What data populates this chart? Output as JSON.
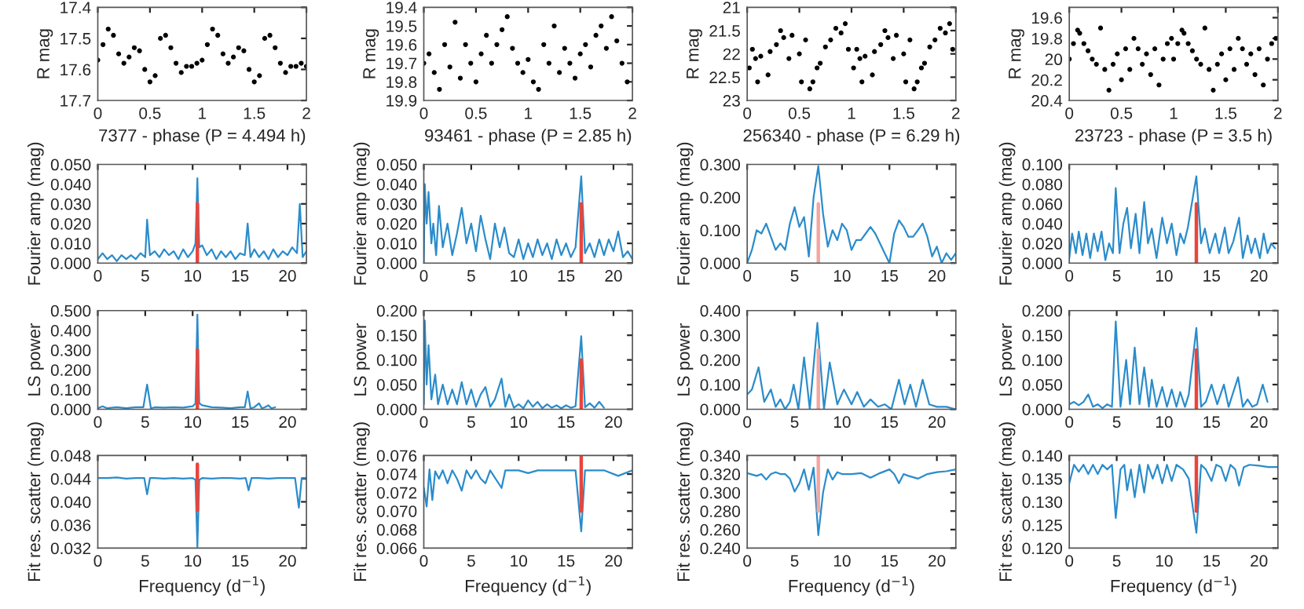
{
  "chart_data": [
    {
      "type": "scatter",
      "xlabel": "7377 - phase (P = 4.494 h)",
      "ylabel": "R mag",
      "marker": "circle",
      "xlim": [
        0,
        2
      ],
      "ylim": [
        17.7,
        17.4
      ],
      "xticks": [
        0,
        0.5,
        1,
        1.5,
        2
      ],
      "yticks": [
        17.4,
        17.5,
        17.6,
        17.7
      ],
      "series": [
        {
          "color": "#000000",
          "x": [
            0,
            0.05,
            0.1,
            0.15,
            0.2,
            0.25,
            0.3,
            0.35,
            0.4,
            0.45,
            0.5,
            0.55,
            0.6,
            0.65,
            0.7,
            0.75,
            0.8,
            0.85,
            0.9,
            0.95,
            1,
            1.05,
            1.1,
            1.15,
            1.2,
            1.25,
            1.3,
            1.35,
            1.4,
            1.45,
            1.5,
            1.55,
            1.6,
            1.65,
            1.7,
            1.75,
            1.8,
            1.85,
            1.9,
            1.95,
            2
          ],
          "values": [
            17.57,
            17.52,
            17.47,
            17.49,
            17.55,
            17.58,
            17.56,
            17.53,
            17.54,
            17.6,
            17.64,
            17.62,
            17.5,
            17.49,
            17.53,
            17.58,
            17.61,
            17.59,
            17.59,
            17.58,
            17.57,
            17.52,
            17.47,
            17.49,
            17.55,
            17.58,
            17.56,
            17.53,
            17.54,
            17.6,
            17.64,
            17.62,
            17.5,
            17.49,
            17.53,
            17.58,
            17.61,
            17.59,
            17.59,
            17.58,
            17.59
          ]
        }
      ]
    },
    {
      "type": "scatter",
      "xlabel": "93461 - phase (P = 2.85 h)",
      "ylabel": "R mag",
      "marker": "circle",
      "xlim": [
        0,
        2
      ],
      "ylim": [
        19.9,
        19.4
      ],
      "xticks": [
        0,
        0.5,
        1,
        1.5,
        2
      ],
      "yticks": [
        19.4,
        19.5,
        19.6,
        19.7,
        19.8,
        19.9
      ],
      "series": [
        {
          "color": "#000000",
          "x": [
            0,
            0.05,
            0.1,
            0.15,
            0.2,
            0.25,
            0.3,
            0.35,
            0.4,
            0.45,
            0.5,
            0.55,
            0.6,
            0.65,
            0.7,
            0.75,
            0.8,
            0.85,
            0.9,
            0.95,
            1,
            1.05,
            1.1,
            1.15,
            1.2,
            1.25,
            1.3,
            1.35,
            1.4,
            1.45,
            1.5,
            1.55,
            1.6,
            1.65,
            1.7,
            1.75,
            1.8,
            1.85,
            1.9,
            1.95
          ],
          "values": [
            19.7,
            19.65,
            19.75,
            19.84,
            19.6,
            19.72,
            19.48,
            19.78,
            19.6,
            19.7,
            19.8,
            19.65,
            19.55,
            19.7,
            19.6,
            19.52,
            19.45,
            19.62,
            19.7,
            19.75,
            19.68,
            19.8,
            19.84,
            19.6,
            19.7,
            19.5,
            19.75,
            19.62,
            19.7,
            19.78,
            19.65,
            19.6,
            19.72,
            19.55,
            19.5,
            19.62,
            19.45,
            19.58,
            19.7,
            19.8
          ]
        }
      ]
    },
    {
      "type": "scatter",
      "xlabel": "256340 - phase (P = 6.29 h)",
      "ylabel": "R mag",
      "marker": "circle",
      "xlim": [
        0,
        2
      ],
      "ylim": [
        23,
        21
      ],
      "xticks": [
        0,
        0.5,
        1,
        1.5,
        2
      ],
      "yticks": [
        21,
        21.5,
        22,
        22.5,
        23
      ],
      "series": [
        {
          "color": "#000000",
          "x": [
            0.02,
            0.05,
            0.08,
            0.1,
            0.13,
            0.2,
            0.22,
            0.28,
            0.32,
            0.35,
            0.4,
            0.43,
            0.5,
            0.52,
            0.56,
            0.6,
            0.63,
            0.67,
            0.7,
            0.75,
            0.8,
            0.85,
            0.9,
            0.94,
            0.97,
            1.02,
            1.05,
            1.08,
            1.1,
            1.13,
            1.2,
            1.22,
            1.28,
            1.32,
            1.35,
            1.4,
            1.43,
            1.5,
            1.52,
            1.56,
            1.6,
            1.63,
            1.67,
            1.7,
            1.75,
            1.8,
            1.85,
            1.9,
            1.94,
            1.97
          ],
          "values": [
            22.3,
            21.9,
            22.1,
            22.6,
            22.05,
            22.45,
            21.95,
            21.8,
            21.5,
            21.65,
            22.1,
            21.6,
            22.0,
            22.6,
            21.7,
            22.75,
            22.6,
            22.3,
            22.2,
            21.85,
            21.7,
            21.45,
            21.55,
            21.35,
            21.9,
            22.3,
            21.9,
            22.1,
            22.6,
            22.05,
            22.45,
            21.95,
            21.8,
            21.5,
            21.65,
            22.1,
            21.6,
            22.0,
            22.6,
            21.7,
            22.75,
            22.6,
            22.3,
            22.2,
            21.85,
            21.7,
            21.45,
            21.55,
            21.35,
            21.9
          ]
        }
      ]
    },
    {
      "type": "scatter",
      "xlabel": "23723 - phase (P = 3.5 h)",
      "ylabel": "R mag",
      "marker": "circle",
      "xlim": [
        0,
        2
      ],
      "ylim": [
        20.4,
        19.5
      ],
      "xticks": [
        0,
        0.5,
        1,
        1.5,
        2
      ],
      "yticks": [
        19.6,
        19.8,
        20,
        20.2,
        20.4
      ],
      "series": [
        {
          "color": "#000000",
          "x": [
            0,
            0.04,
            0.08,
            0.1,
            0.14,
            0.18,
            0.22,
            0.26,
            0.3,
            0.34,
            0.38,
            0.42,
            0.46,
            0.5,
            0.54,
            0.58,
            0.62,
            0.66,
            0.7,
            0.74,
            0.78,
            0.82,
            0.86,
            0.9,
            0.94,
            0.98,
            1,
            1.04,
            1.08,
            1.1,
            1.14,
            1.18,
            1.22,
            1.26,
            1.3,
            1.34,
            1.38,
            1.42,
            1.46,
            1.5,
            1.54,
            1.58,
            1.62,
            1.66,
            1.7,
            1.74,
            1.78,
            1.82,
            1.86,
            1.9,
            1.94,
            1.98
          ],
          "values": [
            20.0,
            19.85,
            19.72,
            19.75,
            19.85,
            19.92,
            20.0,
            20.05,
            19.7,
            20.1,
            20.3,
            20.05,
            19.95,
            20.2,
            19.9,
            20.1,
            19.8,
            19.9,
            20.05,
            19.95,
            20.15,
            19.9,
            20.25,
            20.0,
            19.85,
            19.8,
            20.0,
            19.85,
            19.72,
            19.75,
            19.85,
            19.92,
            20.0,
            20.05,
            19.7,
            20.1,
            20.3,
            20.05,
            19.95,
            20.2,
            19.9,
            20.1,
            19.8,
            19.9,
            20.05,
            19.95,
            20.15,
            19.9,
            20.25,
            20.0,
            19.85,
            19.8
          ]
        }
      ]
    },
    {
      "type": "line",
      "ylabel": "Fourier amp (mag)",
      "xlim": [
        0,
        22
      ],
      "ylim": [
        0,
        0.05
      ],
      "xticks": [
        0,
        5,
        10,
        15,
        20
      ],
      "yticks": [
        {
          "value": 0,
          "label": "0.000"
        },
        {
          "value": 0.01,
          "label": "0.010"
        },
        {
          "value": 0.02,
          "label": "0.020"
        },
        {
          "value": 0.03,
          "label": "0.030"
        },
        {
          "value": 0.04,
          "label": "0.040"
        },
        {
          "value": 0.05,
          "label": "0.050"
        }
      ],
      "series": [
        {
          "color": "#2a8ccb",
          "x": [
            0,
            0.5,
            1,
            1.5,
            2,
            2.5,
            3,
            3.5,
            4,
            4.5,
            5,
            5.2,
            5.5,
            6,
            6.5,
            7,
            7.5,
            8,
            8.5,
            9,
            9.5,
            10,
            10.3,
            10.5,
            10.7,
            11,
            11.5,
            12,
            12.5,
            13,
            13.5,
            14,
            14.5,
            15,
            15.5,
            15.8,
            16.1,
            16.5,
            17,
            17.5,
            18,
            18.5,
            19,
            19.5,
            20,
            20.5,
            21,
            21.3,
            21.6,
            22
          ],
          "values": [
            0.002,
            0.005,
            0.002,
            0.004,
            0.001,
            0.004,
            0.002,
            0.004,
            0.002,
            0.005,
            0.003,
            0.022,
            0.004,
            0.006,
            0.003,
            0.007,
            0.004,
            0.006,
            0.002,
            0.007,
            0.003,
            0.006,
            0.01,
            0.043,
            0.008,
            0.009,
            0.004,
            0.007,
            0.002,
            0.006,
            0.003,
            0.006,
            0.002,
            0.005,
            0.004,
            0.02,
            0.003,
            0.007,
            0.003,
            0.006,
            0.002,
            0.007,
            0.003,
            0.006,
            0.004,
            0.008,
            0.005,
            0.03,
            0.003,
            0.006
          ]
        },
        {
          "type": "line",
          "color": "#e8453c",
          "x": [
            10.5,
            10.5
          ],
          "values": [
            0,
            0.03
          ]
        }
      ]
    },
    {
      "type": "line",
      "ylabel": "Fourier amp (mag)",
      "xlim": [
        0,
        22
      ],
      "ylim": [
        0,
        0.05
      ],
      "xticks": [
        0,
        5,
        10,
        15,
        20
      ],
      "yticks": [
        {
          "value": 0,
          "label": "0.000"
        },
        {
          "value": 0.01,
          "label": "0.010"
        },
        {
          "value": 0.02,
          "label": "0.020"
        },
        {
          "value": 0.03,
          "label": "0.030"
        },
        {
          "value": 0.04,
          "label": "0.040"
        },
        {
          "value": 0.05,
          "label": "0.050"
        }
      ],
      "series": [
        {
          "color": "#2a8ccb",
          "x": [
            0,
            0.1,
            0.3,
            0.5,
            0.8,
            1,
            1.3,
            1.6,
            2,
            2.5,
            3,
            3.5,
            4,
            4.5,
            5,
            5.5,
            6,
            6.5,
            7,
            7.5,
            8,
            8.5,
            9,
            9.5,
            10,
            10.5,
            11,
            11.5,
            12,
            12.5,
            13,
            13.5,
            14,
            14.5,
            15,
            15.5,
            16,
            16.6,
            17,
            17.5,
            18,
            18.5,
            19,
            19.5,
            20,
            20.5,
            21,
            21.5,
            22
          ],
          "values": [
            0.0,
            0.04,
            0.02,
            0.036,
            0.01,
            0.02,
            0.004,
            0.029,
            0.008,
            0.02,
            0.004,
            0.015,
            0.028,
            0.01,
            0.02,
            0.006,
            0.024,
            0.012,
            0.002,
            0.02,
            0.008,
            0.018,
            0.005,
            0.003,
            0.012,
            0.002,
            0.01,
            0.003,
            0.012,
            0.004,
            0.01,
            0.002,
            0.012,
            0.004,
            0.01,
            0.003,
            0.008,
            0.044,
            0.005,
            0.01,
            0.003,
            0.012,
            0.004,
            0.012,
            0.006,
            0.016,
            0.003,
            0.006,
            0.002
          ]
        },
        {
          "type": "line",
          "color": "#e8453c",
          "x": [
            16.6,
            16.6
          ],
          "values": [
            0,
            0.03
          ]
        }
      ]
    },
    {
      "type": "line",
      "ylabel": "Fourier amp (mag)",
      "xlim": [
        0,
        22
      ],
      "ylim": [
        0,
        0.3
      ],
      "xticks": [
        0,
        5,
        10,
        15,
        20
      ],
      "yticks": [
        {
          "value": 0,
          "label": "0.000"
        },
        {
          "value": 0.1,
          "label": "0.100"
        },
        {
          "value": 0.2,
          "label": "0.200"
        },
        {
          "value": 0.3,
          "label": "0.300"
        }
      ],
      "series": [
        {
          "color": "#2a8ccb",
          "x": [
            0,
            0.5,
            1,
            1.5,
            2,
            2.5,
            3,
            3.5,
            4,
            4.5,
            5,
            5.5,
            6,
            6.5,
            7,
            7.5,
            8,
            8.5,
            9,
            9.5,
            10,
            10.5,
            11,
            11.5,
            12,
            12.5,
            13,
            13.5,
            14,
            14.5,
            15,
            15.5,
            16,
            16.5,
            17,
            17.5,
            18,
            18.5,
            19,
            19.5,
            20,
            20.5,
            21,
            21.5,
            22
          ],
          "values": [
            0.0,
            0.04,
            0.1,
            0.09,
            0.12,
            0.08,
            0.04,
            0.06,
            0.04,
            0.12,
            0.17,
            0.11,
            0.14,
            0.02,
            0.2,
            0.295,
            0.15,
            0.05,
            0.1,
            0.07,
            0.12,
            0.1,
            0.04,
            0.07,
            0.07,
            0.09,
            0.11,
            0.09,
            0.06,
            0.03,
            0.0,
            0.09,
            0.13,
            0.11,
            0.08,
            0.08,
            0.1,
            0.12,
            0.08,
            0.02,
            0.05,
            0.0,
            0.03,
            0.01,
            0.03
          ]
        },
        {
          "type": "line",
          "color": "#f4a6a0",
          "x": [
            7.5,
            7.5
          ],
          "values": [
            0,
            0.18
          ]
        }
      ]
    },
    {
      "type": "line",
      "ylabel": "Fourier amp (mag)",
      "xlim": [
        0,
        22
      ],
      "ylim": [
        0,
        0.1
      ],
      "xticks": [
        0,
        5,
        10,
        15,
        20
      ],
      "yticks": [
        {
          "value": 0,
          "label": "0.000"
        },
        {
          "value": 0.02,
          "label": "0.020"
        },
        {
          "value": 0.04,
          "label": "0.040"
        },
        {
          "value": 0.06,
          "label": "0.060"
        },
        {
          "value": 0.08,
          "label": "0.080"
        },
        {
          "value": 0.1,
          "label": "0.100"
        }
      ],
      "series": [
        {
          "color": "#2a8ccb",
          "x": [
            0,
            0.3,
            0.7,
            1,
            1.4,
            1.8,
            2.2,
            2.6,
            3,
            3.4,
            3.8,
            4.2,
            4.6,
            4.9,
            5.3,
            5.7,
            6.1,
            6.5,
            7,
            7.4,
            7.9,
            8.3,
            8.7,
            9.2,
            9.8,
            10.3,
            10.8,
            11.3,
            11.7,
            12.1,
            12.5,
            13.4,
            13.9,
            14.3,
            14.8,
            15.4,
            15.8,
            16.4,
            16.8,
            17.3,
            17.9,
            18.3,
            18.8,
            19.2,
            19.6,
            20.1,
            20.5,
            20.9,
            21.3,
            21.7
          ],
          "values": [
            0.005,
            0.03,
            0.01,
            0.032,
            0.008,
            0.03,
            0.005,
            0.03,
            0.012,
            0.032,
            0.003,
            0.02,
            0.01,
            0.076,
            0.01,
            0.04,
            0.056,
            0.015,
            0.05,
            0.01,
            0.062,
            0.02,
            0.035,
            0.005,
            0.046,
            0.02,
            0.04,
            0.008,
            0.03,
            0.02,
            0.036,
            0.088,
            0.02,
            0.035,
            0.01,
            0.03,
            0.01,
            0.036,
            0.01,
            0.022,
            0.046,
            0.005,
            0.028,
            0.01,
            0.025,
            0.005,
            0.03,
            0.01,
            0.02,
            0.015
          ]
        },
        {
          "type": "line",
          "color": "#e8453c",
          "x": [
            13.4,
            13.4
          ],
          "values": [
            0,
            0.06
          ]
        }
      ]
    },
    {
      "type": "line",
      "ylabel": "LS power",
      "xlim": [
        0,
        22
      ],
      "ylim": [
        0,
        0.5
      ],
      "xticks": [
        0,
        5,
        10,
        15,
        20
      ],
      "yticks": [
        {
          "value": 0,
          "label": "0.000"
        },
        {
          "value": 0.1,
          "label": "0.100"
        },
        {
          "value": 0.2,
          "label": "0.200"
        },
        {
          "value": 0.3,
          "label": "0.300"
        },
        {
          "value": 0.4,
          "label": "0.400"
        },
        {
          "value": 0.5,
          "label": "0.500"
        }
      ],
      "series": [
        {
          "color": "#2a8ccb",
          "x": [
            0,
            0.5,
            1,
            2,
            3,
            4,
            4.8,
            5.2,
            5.6,
            6,
            7,
            8,
            9,
            10,
            10.3,
            10.5,
            10.7,
            11,
            12,
            13,
            14,
            15,
            15.5,
            15.8,
            16.1,
            16.5,
            17,
            17.3,
            17.6,
            18,
            18.3,
            18.7
          ],
          "values": [
            0.005,
            0.015,
            0.005,
            0.01,
            0.005,
            0.01,
            0.01,
            0.125,
            0.005,
            0.01,
            0.008,
            0.01,
            0.008,
            0.015,
            0.03,
            0.48,
            0.03,
            0.02,
            0.01,
            0.008,
            0.005,
            0.01,
            0.01,
            0.09,
            0.005,
            0.01,
            0.03,
            0.005,
            0.01,
            0.02,
            0.005,
            0.01
          ]
        },
        {
          "type": "line",
          "color": "#e8453c",
          "x": [
            10.5,
            10.5
          ],
          "values": [
            0,
            0.3
          ]
        }
      ]
    },
    {
      "type": "line",
      "ylabel": "LS power",
      "xlim": [
        0,
        22
      ],
      "ylim": [
        0,
        0.2
      ],
      "xticks": [
        0,
        5,
        10,
        15,
        20
      ],
      "yticks": [
        {
          "value": 0,
          "label": "0.000"
        },
        {
          "value": 0.05,
          "label": "0.050"
        },
        {
          "value": 0.1,
          "label": "0.100"
        },
        {
          "value": 0.15,
          "label": "0.150"
        },
        {
          "value": 0.2,
          "label": "0.200"
        }
      ],
      "series": [
        {
          "color": "#2a8ccb",
          "x": [
            0,
            0.1,
            0.3,
            0.5,
            0.8,
            1.2,
            1.5,
            2,
            2.5,
            3,
            3.5,
            4,
            4.5,
            5,
            5.5,
            6,
            6.5,
            7,
            7.5,
            8.2,
            8.6,
            9,
            9.5,
            10,
            10.5,
            11,
            11.5,
            12,
            12.5,
            13,
            13.5,
            14,
            14.5,
            15,
            15.5,
            16,
            16.6,
            17,
            17.5,
            18,
            18.5,
            19
          ],
          "values": [
            0.01,
            0.18,
            0.05,
            0.13,
            0.02,
            0.07,
            0.01,
            0.05,
            0.01,
            0.04,
            0.01,
            0.055,
            0.01,
            0.04,
            0.005,
            0.03,
            0.045,
            0.005,
            0.02,
            0.062,
            0.005,
            0.03,
            0.003,
            0.01,
            0.002,
            0.018,
            0.005,
            0.015,
            0.002,
            0.01,
            0.003,
            0.008,
            0.002,
            0.008,
            0.003,
            0.006,
            0.148,
            0.004,
            0.012,
            0.003,
            0.015,
            0.003
          ]
        },
        {
          "type": "line",
          "color": "#e8453c",
          "x": [
            16.6,
            16.6
          ],
          "values": [
            0,
            0.1
          ]
        }
      ]
    },
    {
      "type": "line",
      "ylabel": "LS power",
      "xlim": [
        0,
        22
      ],
      "ylim": [
        0,
        0.4
      ],
      "xticks": [
        0,
        5,
        10,
        15,
        20
      ],
      "yticks": [
        {
          "value": 0,
          "label": "0.000"
        },
        {
          "value": 0.1,
          "label": "0.100"
        },
        {
          "value": 0.2,
          "label": "0.200"
        },
        {
          "value": 0.3,
          "label": "0.300"
        },
        {
          "value": 0.4,
          "label": "0.400"
        }
      ],
      "series": [
        {
          "color": "#2a8ccb",
          "x": [
            0,
            0.5,
            1.2,
            1.8,
            2.5,
            3,
            3.5,
            4,
            4.5,
            4.9,
            5.4,
            6,
            6.6,
            7.4,
            8.1,
            8.7,
            9.5,
            10.2,
            11,
            11.6,
            12.3,
            13,
            13.8,
            14.5,
            15.2,
            16,
            16.6,
            17.2,
            17.8,
            18.5,
            19.2,
            20,
            21,
            22
          ],
          "values": [
            0.06,
            0.08,
            0.17,
            0.03,
            0.08,
            0.01,
            0.04,
            0.0,
            0.03,
            0.1,
            0.0,
            0.21,
            0.0,
            0.35,
            0.0,
            0.19,
            0.02,
            0.08,
            0.02,
            0.07,
            0.01,
            0.04,
            0.01,
            0.02,
            0.0,
            0.12,
            0.02,
            0.1,
            0.01,
            0.12,
            0.02,
            0.01,
            0.01,
            0.0
          ]
        },
        {
          "type": "line",
          "color": "#f4a6a0",
          "x": [
            7.5,
            7.5
          ],
          "values": [
            0,
            0.24
          ]
        }
      ]
    },
    {
      "type": "line",
      "ylabel": "LS power",
      "xlim": [
        0,
        22
      ],
      "ylim": [
        0,
        0.2
      ],
      "xticks": [
        0,
        5,
        10,
        15,
        20
      ],
      "yticks": [
        {
          "value": 0,
          "label": "0.000"
        },
        {
          "value": 0.05,
          "label": "0.050"
        },
        {
          "value": 0.1,
          "label": "0.100"
        },
        {
          "value": 0.15,
          "label": "0.150"
        },
        {
          "value": 0.2,
          "label": "0.200"
        }
      ],
      "series": [
        {
          "color": "#2a8ccb",
          "x": [
            0,
            0.5,
            1,
            1.5,
            2,
            2.5,
            3,
            3.5,
            4,
            4.5,
            4.9,
            5.4,
            6,
            6.4,
            6.9,
            7.4,
            7.9,
            8.4,
            8.7,
            9.2,
            9.8,
            10.3,
            10.8,
            11.3,
            11.7,
            12.2,
            12.6,
            13.4,
            13.9,
            14.4,
            15,
            15.6,
            16.3,
            16.8,
            17.8,
            18.3,
            18.8,
            19.3,
            19.8,
            20.4,
            20.9
          ],
          "values": [
            0.01,
            0.015,
            0.008,
            0.015,
            0.03,
            0.005,
            0.01,
            0.002,
            0.01,
            0.005,
            0.178,
            0.005,
            0.1,
            0.01,
            0.125,
            0.01,
            0.085,
            0.005,
            0.06,
            0.005,
            0.045,
            0.005,
            0.04,
            0.005,
            0.035,
            0.005,
            0.03,
            0.165,
            0.005,
            0.015,
            0.05,
            0.01,
            0.05,
            0.005,
            0.065,
            0.005,
            0.02,
            0.005,
            0.01,
            0.05,
            0.015
          ]
        },
        {
          "type": "line",
          "color": "#e8453c",
          "x": [
            13.4,
            13.4
          ],
          "values": [
            0,
            0.12
          ]
        }
      ]
    },
    {
      "type": "line",
      "xlabel": "Frequency (d$^{−1}$)",
      "ylabel": "Fit res. scatter (mag)",
      "xlim": [
        0,
        22
      ],
      "ylim": [
        0.032,
        0.048
      ],
      "xticks": [
        0,
        5,
        10,
        15,
        20
      ],
      "yticks": [
        {
          "value": 0.032,
          "label": "0.032"
        },
        {
          "value": 0.036,
          "label": "0.036"
        },
        {
          "value": 0.04,
          "label": "0.040"
        },
        {
          "value": 0.044,
          "label": "0.044"
        },
        {
          "value": 0.048,
          "label": "0.048"
        }
      ],
      "series": [
        {
          "color": "#2a8ccb",
          "x": [
            0,
            1,
            2,
            3,
            4,
            4.9,
            5.2,
            5.5,
            6,
            7,
            8,
            9,
            10,
            10.3,
            10.5,
            10.7,
            11,
            12,
            13,
            14,
            15,
            15.6,
            15.9,
            16.2,
            17,
            18,
            19,
            20,
            20.8,
            21.2,
            21.5,
            22
          ],
          "values": [
            0.0441,
            0.0441,
            0.0442,
            0.044,
            0.0441,
            0.0441,
            0.0413,
            0.0441,
            0.0441,
            0.044,
            0.0441,
            0.044,
            0.0441,
            0.0438,
            0.0322,
            0.0438,
            0.0441,
            0.044,
            0.0441,
            0.0441,
            0.044,
            0.0441,
            0.042,
            0.0441,
            0.0441,
            0.044,
            0.0441,
            0.0441,
            0.0441,
            0.039,
            0.0441,
            0.0441
          ]
        },
        {
          "type": "line",
          "color": "#e8453c",
          "x": [
            10.5,
            10.5
          ],
          "values": [
            0.0385,
            0.0465
          ]
        }
      ]
    },
    {
      "type": "line",
      "xlabel": "Frequency (d$^{−1}$)",
      "ylabel": "Fit res. scatter (mag)",
      "xlim": [
        0,
        22
      ],
      "ylim": [
        0.066,
        0.076
      ],
      "xticks": [
        0,
        5,
        10,
        15,
        20
      ],
      "yticks": [
        {
          "value": 0.066,
          "label": "0.066"
        },
        {
          "value": 0.068,
          "label": "0.068"
        },
        {
          "value": 0.07,
          "label": "0.070"
        },
        {
          "value": 0.072,
          "label": "0.072"
        },
        {
          "value": 0.074,
          "label": "0.074"
        },
        {
          "value": 0.076,
          "label": "0.076"
        }
      ],
      "series": [
        {
          "color": "#2a8ccb",
          "x": [
            0,
            0.3,
            0.6,
            0.9,
            1.2,
            1.6,
            2,
            2.5,
            3,
            3.5,
            4,
            4.5,
            5,
            5.5,
            6,
            6.5,
            7,
            8.2,
            8.6,
            10,
            11,
            12,
            14,
            16,
            16.6,
            17,
            19,
            20.5,
            22
          ],
          "values": [
            0.0725,
            0.0705,
            0.0745,
            0.0712,
            0.0743,
            0.0735,
            0.0744,
            0.073,
            0.0744,
            0.0735,
            0.0722,
            0.0744,
            0.0735,
            0.0744,
            0.0735,
            0.073,
            0.0744,
            0.0725,
            0.0744,
            0.0744,
            0.0741,
            0.0744,
            0.0744,
            0.0744,
            0.0678,
            0.0744,
            0.0744,
            0.0738,
            0.0744
          ]
        },
        {
          "type": "line",
          "color": "#e8453c",
          "x": [
            16.6,
            16.6
          ],
          "values": [
            0.07,
            0.076
          ]
        }
      ]
    },
    {
      "type": "line",
      "xlabel": "Frequency (d$^{−1}$)",
      "ylabel": "Fit res. scatter (mag)",
      "xlim": [
        0,
        22
      ],
      "ylim": [
        0.24,
        0.34
      ],
      "xticks": [
        0,
        5,
        10,
        15,
        20
      ],
      "yticks": [
        {
          "value": 0.24,
          "label": "0.240"
        },
        {
          "value": 0.26,
          "label": "0.260"
        },
        {
          "value": 0.28,
          "label": "0.280"
        },
        {
          "value": 0.3,
          "label": "0.300"
        },
        {
          "value": 0.32,
          "label": "0.320"
        },
        {
          "value": 0.34,
          "label": "0.340"
        }
      ],
      "series": [
        {
          "color": "#2a8ccb",
          "x": [
            0,
            1,
            1.5,
            2,
            2.5,
            3,
            3.5,
            4,
            4.5,
            5,
            5.5,
            6,
            6.5,
            7,
            7.5,
            8,
            8.5,
            9,
            9.5,
            10,
            11,
            12,
            13,
            14,
            15,
            15.5,
            16,
            16.5,
            17,
            18,
            19,
            20,
            21,
            22
          ],
          "values": [
            0.321,
            0.318,
            0.32,
            0.314,
            0.32,
            0.322,
            0.32,
            0.32,
            0.315,
            0.301,
            0.31,
            0.325,
            0.303,
            0.327,
            0.254,
            0.3,
            0.325,
            0.314,
            0.322,
            0.32,
            0.32,
            0.321,
            0.316,
            0.321,
            0.325,
            0.32,
            0.31,
            0.32,
            0.318,
            0.315,
            0.32,
            0.322,
            0.323,
            0.325
          ]
        },
        {
          "type": "line",
          "color": "#f4a6a0",
          "x": [
            7.5,
            7.5
          ],
          "values": [
            0.28,
            0.34
          ]
        }
      ]
    },
    {
      "type": "line",
      "xlabel": "Frequency (d$^{−1}$)",
      "ylabel": "Fit res. scatter (mag)",
      "xlim": [
        0,
        22
      ],
      "ylim": [
        0.12,
        0.14
      ],
      "xticks": [
        0,
        5,
        10,
        15,
        20
      ],
      "yticks": [
        {
          "value": 0.12,
          "label": "0.120"
        },
        {
          "value": 0.125,
          "label": "0.125"
        },
        {
          "value": 0.13,
          "label": "0.130"
        },
        {
          "value": 0.135,
          "label": "0.135"
        },
        {
          "value": 0.14,
          "label": "0.140"
        }
      ],
      "series": [
        {
          "color": "#2a8ccb",
          "x": [
            0,
            0.5,
            1,
            1.5,
            2,
            2.5,
            3,
            3.5,
            4,
            4.5,
            4.9,
            5.4,
            5.8,
            6.1,
            6.5,
            6.9,
            7.4,
            7.9,
            8.3,
            8.8,
            9.3,
            9.8,
            10.3,
            10.8,
            11.3,
            12,
            12.6,
            13.4,
            13.9,
            14.4,
            15,
            15.5,
            16,
            16.5,
            17,
            17.5,
            17.9,
            18.4,
            19,
            20,
            21,
            22
          ],
          "values": [
            0.134,
            0.138,
            0.1365,
            0.138,
            0.136,
            0.138,
            0.136,
            0.138,
            0.137,
            0.138,
            0.1265,
            0.137,
            0.138,
            0.1325,
            0.137,
            0.131,
            0.138,
            0.132,
            0.138,
            0.135,
            0.138,
            0.134,
            0.138,
            0.1345,
            0.138,
            0.137,
            0.135,
            0.1233,
            0.138,
            0.137,
            0.1345,
            0.138,
            0.1375,
            0.1345,
            0.138,
            0.137,
            0.1335,
            0.1375,
            0.138,
            0.1378,
            0.1375,
            0.1375
          ]
        },
        {
          "type": "line",
          "color": "#e8453c",
          "x": [
            13.4,
            13.4
          ],
          "values": [
            0.128,
            0.14
          ]
        }
      ]
    }
  ]
}
